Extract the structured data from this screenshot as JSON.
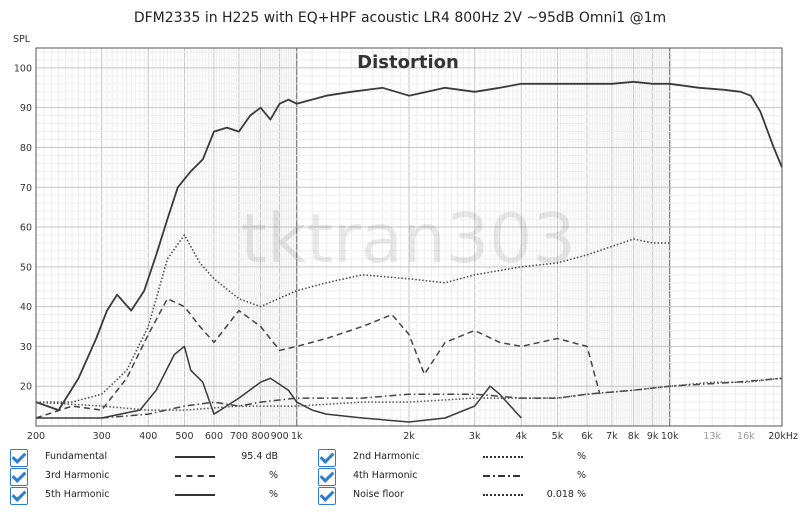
{
  "chart_data": {
    "type": "line",
    "title": "DFM2335 in H225 with EQ+HPF acoustic LR4 800Hz 2V ~95dB Omni1 @1m",
    "subtitle": "Distortion",
    "watermark": "tktran303",
    "ylabel": "SPL",
    "xlabel": "",
    "x_scale": "log",
    "xlim": [
      200,
      20000
    ],
    "ylim": [
      10,
      105
    ],
    "grid": true,
    "legend_position": "bottom",
    "y_ticks": [
      20,
      30,
      40,
      50,
      60,
      70,
      80,
      90,
      100
    ],
    "x_ticks": [
      {
        "v": 200,
        "label": "200"
      },
      {
        "v": 300,
        "label": "300"
      },
      {
        "v": 400,
        "label": "400"
      },
      {
        "v": 500,
        "label": "500"
      },
      {
        "v": 600,
        "label": "600"
      },
      {
        "v": 700,
        "label": "700"
      },
      {
        "v": 800,
        "label": "800"
      },
      {
        "v": 900,
        "label": "900"
      },
      {
        "v": 1000,
        "label": "1k"
      },
      {
        "v": 2000,
        "label": "2k"
      },
      {
        "v": 3000,
        "label": "3k"
      },
      {
        "v": 4000,
        "label": "4k"
      },
      {
        "v": 5000,
        "label": "5k"
      },
      {
        "v": 6000,
        "label": "6k"
      },
      {
        "v": 7000,
        "label": "7k"
      },
      {
        "v": 8000,
        "label": "8k"
      },
      {
        "v": 9000,
        "label": "9k"
      },
      {
        "v": 10000,
        "label": "10k"
      },
      {
        "v": 13000,
        "label": "13k"
      },
      {
        "v": 16000,
        "label": "16k"
      },
      {
        "v": 20000,
        "label": "20kHz"
      }
    ],
    "series": [
      {
        "name": "Fundamental",
        "dash": "solid",
        "color": "#3a3a3a",
        "x": [
          200,
          230,
          260,
          290,
          310,
          330,
          360,
          390,
          420,
          450,
          480,
          520,
          560,
          600,
          650,
          700,
          750,
          800,
          850,
          900,
          950,
          1000,
          1200,
          1400,
          1700,
          2000,
          2500,
          3000,
          3500,
          4000,
          5000,
          6000,
          7000,
          8000,
          9000,
          10000,
          12000,
          14000,
          15500,
          16500,
          17500,
          19000,
          20000
        ],
        "y": [
          16,
          14,
          22,
          32,
          39,
          43,
          39,
          44,
          53,
          62,
          70,
          74,
          77,
          84,
          85,
          84,
          88,
          90,
          87,
          91,
          92,
          91,
          93,
          94,
          95,
          93,
          95,
          94,
          95,
          96,
          96,
          96,
          96,
          96.5,
          96,
          96,
          95,
          94.5,
          94,
          93,
          89,
          80,
          75
        ]
      },
      {
        "name": "2nd Harmonic",
        "dash": "dot",
        "color": "#444444",
        "x": [
          200,
          250,
          300,
          350,
          400,
          450,
          500,
          550,
          600,
          700,
          800,
          1000,
          1200,
          1500,
          2000,
          2500,
          3000,
          4000,
          5000,
          6000,
          8000,
          9000,
          10000
        ],
        "y": [
          16,
          16,
          18,
          24,
          35,
          52,
          58,
          51,
          47,
          42,
          40,
          44,
          46,
          48,
          47,
          46,
          48,
          50,
          51,
          53,
          57,
          56,
          56
        ]
      },
      {
        "name": "3rd Harmonic",
        "dash": "dash",
        "color": "#444444",
        "x": [
          200,
          250,
          300,
          350,
          400,
          450,
          500,
          550,
          600,
          700,
          800,
          900,
          1000,
          1200,
          1500,
          1800,
          2000,
          2200,
          2500,
          3000,
          3500,
          4000,
          5000,
          6000,
          6500
        ],
        "y": [
          12,
          15,
          14,
          22,
          33,
          42,
          40,
          35,
          31,
          39,
          35,
          29,
          30,
          32,
          35,
          38,
          33,
          23,
          31,
          34,
          31,
          30,
          32,
          30,
          18
        ]
      },
      {
        "name": "4th Harmonic",
        "dash": "dashdot",
        "color": "#444444",
        "x": [
          300,
          400,
          500,
          600,
          700,
          800,
          1000,
          1500,
          2000,
          3000,
          4000,
          5000,
          6000,
          8000,
          10000,
          15000,
          20000
        ],
        "y": [
          12,
          13,
          15,
          16,
          15,
          16,
          17,
          17,
          18,
          18,
          17,
          17,
          18,
          19,
          20,
          21,
          22
        ]
      },
      {
        "name": "5th Harmonic",
        "dash": "solid",
        "color": "#3a3a3a",
        "x": [
          200,
          300,
          380,
          420,
          470,
          500,
          520,
          560,
          600,
          700,
          800,
          850,
          950,
          1000,
          1100,
          1200,
          1500,
          2000,
          2500,
          3000,
          3300,
          3500,
          4000
        ],
        "y": [
          12,
          12,
          14,
          19,
          28,
          30,
          24,
          21,
          13,
          17,
          21,
          22,
          19,
          16,
          14,
          13,
          12,
          11,
          12,
          15,
          20,
          18,
          12
        ]
      },
      {
        "name": "Noise floor",
        "dash": "dot",
        "color": "#555555",
        "x": [
          200,
          300,
          400,
          500,
          700,
          1000,
          1500,
          2000,
          3000,
          4000,
          5000,
          6000,
          8000,
          10000,
          13000,
          16000,
          20000
        ],
        "y": [
          16,
          15,
          14,
          14,
          15,
          15,
          16,
          16,
          17,
          17,
          17,
          18,
          19,
          20,
          21,
          21,
          22
        ]
      }
    ]
  },
  "legend": {
    "items": [
      {
        "label": "Fundamental",
        "value": "95.4 dB",
        "style": "solid"
      },
      {
        "label": "2nd Harmonic",
        "value": "%",
        "style": "dot"
      },
      {
        "label": "3rd Harmonic",
        "value": "%",
        "style": "dash"
      },
      {
        "label": "4th Harmonic",
        "value": "%",
        "style": "dashdot"
      },
      {
        "label": "5th Harmonic",
        "value": "%",
        "style": "solid"
      },
      {
        "label": "Noise floor",
        "value": "0.018 %",
        "style": "dot"
      }
    ]
  }
}
